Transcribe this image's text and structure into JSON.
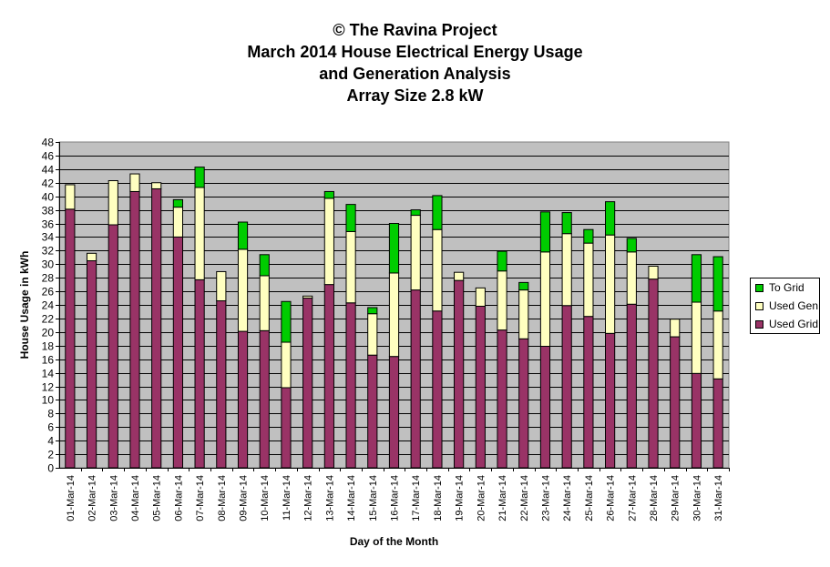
{
  "titles": [
    "© The Ravina Project",
    "March 2014 House Electrical Energy Usage",
    "and Generation Analysis",
    "Array Size 2.8 kW"
  ],
  "colors": {
    "used_grid": "#993366",
    "used_gen": "#FFFFC0",
    "to_grid": "#00CC00",
    "plot_bg": "#C0C0C0"
  },
  "chart_data": {
    "type": "bar",
    "stacked": true,
    "title": "© The Ravina Project / March 2014 House Electrical Energy Usage and Generation Analysis / Array Size 2.8 kW",
    "xlabel": "Day of the Month",
    "ylabel": "House Usage in kWh",
    "ylim": [
      0,
      48
    ],
    "ytick_step": 2,
    "grid": true,
    "legend_position": "right",
    "categories": [
      "01-Mar-14",
      "02-Mar-14",
      "03-Mar-14",
      "04-Mar-14",
      "05-Mar-14",
      "06-Mar-14",
      "07-Mar-14",
      "08-Mar-14",
      "09-Mar-14",
      "10-Mar-14",
      "11-Mar-14",
      "12-Mar-14",
      "13-Mar-14",
      "14-Mar-14",
      "15-Mar-14",
      "16-Mar-14",
      "17-Mar-14",
      "18-Mar-14",
      "19-Mar-14",
      "20-Mar-14",
      "21-Mar-14",
      "22-Mar-14",
      "23-Mar-14",
      "24-Mar-14",
      "25-Mar-14",
      "26-Mar-14",
      "27-Mar-14",
      "28-Mar-14",
      "29-Mar-14",
      "30-Mar-14",
      "31-Mar-14"
    ],
    "series": [
      {
        "name": "Used Grid",
        "values": [
          38.1,
          30.5,
          35.8,
          40.7,
          41.1,
          34.0,
          27.7,
          24.6,
          20.1,
          20.2,
          11.8,
          25.0,
          27.0,
          24.3,
          16.6,
          16.4,
          26.2,
          23.1,
          27.6,
          23.8,
          20.3,
          19.0,
          17.9,
          23.9,
          22.3,
          19.8,
          24.1,
          27.8,
          19.3,
          13.9,
          13.1
        ]
      },
      {
        "name": "Used Gen",
        "values": [
          3.6,
          1.1,
          6.5,
          2.6,
          0.9,
          4.4,
          13.6,
          4.3,
          12.1,
          8.1,
          6.7,
          0.3,
          12.7,
          10.5,
          6.1,
          12.3,
          11.0,
          12.0,
          1.2,
          2.7,
          8.7,
          7.2,
          13.9,
          10.6,
          10.8,
          14.5,
          7.7,
          1.9,
          2.6,
          10.5,
          10.0
        ]
      },
      {
        "name": "To Grid",
        "values": [
          0,
          0,
          0,
          0,
          0,
          1.1,
          3.0,
          0,
          4.0,
          3.1,
          6.0,
          0,
          1.0,
          4.0,
          0.9,
          7.3,
          0.8,
          5.0,
          0,
          0,
          2.9,
          1.1,
          5.9,
          3.1,
          2.0,
          4.9,
          2.0,
          0,
          0,
          7.0,
          8.0
        ]
      }
    ]
  },
  "legend": {
    "to_grid": "To Grid",
    "used_gen": "Used Gen",
    "used_grid": "Used Grid"
  }
}
